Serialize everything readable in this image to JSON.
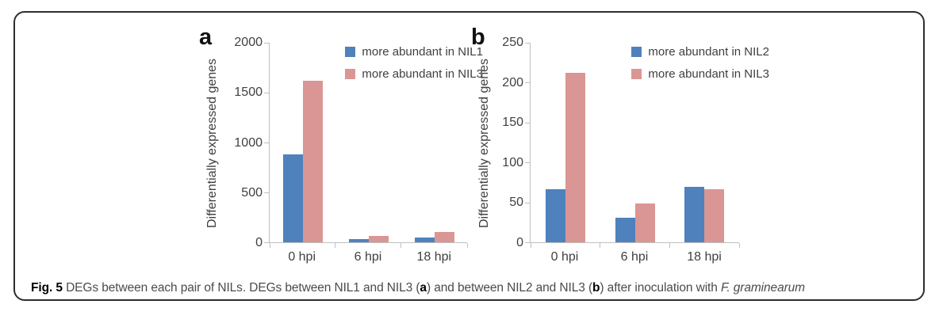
{
  "figure": {
    "caption": {
      "segments": [
        {
          "text": "Fig. 5 ",
          "bold": true
        },
        {
          "text": "DEGs between each pair of NILs. DEGs between NIL1 and NIL3 ("
        },
        {
          "text": "a",
          "bold": true
        },
        {
          "text": ") and between NIL2 and NIL3 ("
        },
        {
          "text": "b",
          "bold": true
        },
        {
          "text": ") after inoculation with "
        },
        {
          "text": "F. graminearum",
          "italic": true
        }
      ]
    },
    "colors": {
      "axis": "#bfbfbf",
      "text": "#404040",
      "border": "#2e2e2e",
      "series_blue": "#4f81bd",
      "series_pink": "#d99694"
    }
  },
  "chart_data": [
    {
      "type": "bar",
      "panel_letter": "a",
      "title": "",
      "xlabel": "",
      "ylabel": "Differentially expressed genes",
      "categories": [
        "0 hpi",
        "6 hpi",
        "18 hpi"
      ],
      "series": [
        {
          "name": "more abundant in NIL1",
          "color": "#4f81bd",
          "values": [
            880,
            30,
            45
          ]
        },
        {
          "name": "more abundant in NIL3",
          "color": "#d99694",
          "values": [
            1610,
            62,
            100
          ]
        }
      ],
      "ylim": [
        0,
        2000
      ],
      "ytick_step": 500,
      "grid": false,
      "legend_position": "top-right"
    },
    {
      "type": "bar",
      "panel_letter": "b",
      "title": "",
      "xlabel": "",
      "ylabel": "Differentially expressed genes",
      "categories": [
        "0 hpi",
        "6 hpi",
        "18 hpi"
      ],
      "series": [
        {
          "name": "more abundant in NIL2",
          "color": "#4f81bd",
          "values": [
            66,
            31,
            69
          ]
        },
        {
          "name": "more abundant in NIL3",
          "color": "#d99694",
          "values": [
            211,
            48,
            66
          ]
        }
      ],
      "ylim": [
        0,
        250
      ],
      "ytick_step": 50,
      "grid": false,
      "legend_position": "top-right"
    }
  ]
}
